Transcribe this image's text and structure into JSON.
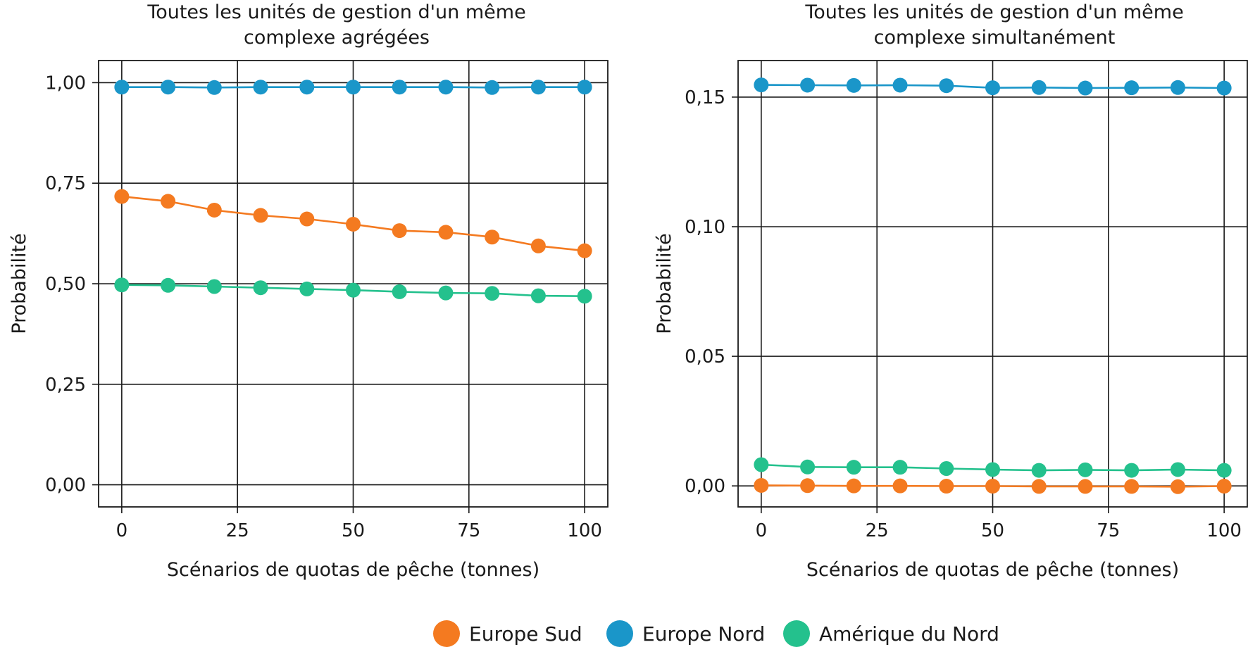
{
  "colors": {
    "europe_sud": "#f47a20",
    "europe_nord": "#1a96c9",
    "amerique_nord": "#24c18d"
  },
  "legend": [
    {
      "label": "Europe Sud",
      "color": "#f47a20"
    },
    {
      "label": "Europe Nord",
      "color": "#1a96c9"
    },
    {
      "label": "Amérique du Nord",
      "color": "#24c18d"
    }
  ],
  "chart_data": [
    {
      "type": "line",
      "title": [
        "Toutes les unités de gestion d'un même",
        "complexe agrégées"
      ],
      "xlabel": "Scénarios de quotas de pêche (tonnes)",
      "ylabel": "Probabilité",
      "x": [
        0,
        10,
        20,
        30,
        40,
        50,
        60,
        70,
        80,
        90,
        100
      ],
      "xlim": [
        -5,
        105
      ],
      "ylim": [
        -0.055,
        1.055
      ],
      "xticks": [
        0,
        25,
        50,
        75,
        100
      ],
      "xtick_labels": [
        "0",
        "25",
        "50",
        "75",
        "100"
      ],
      "yticks": [
        0,
        0.25,
        0.5,
        0.75,
        1.0
      ],
      "ytick_labels": [
        "0,00",
        "0,25",
        "0,50",
        "0,75",
        "1,00"
      ],
      "grid": true,
      "series": [
        {
          "name": "Europe Nord",
          "color": "#1a96c9",
          "values": [
            0.989,
            0.989,
            0.988,
            0.989,
            0.989,
            0.989,
            0.989,
            0.989,
            0.988,
            0.989,
            0.989
          ]
        },
        {
          "name": "Europe Sud",
          "color": "#f47a20",
          "values": [
            0.717,
            0.705,
            0.683,
            0.67,
            0.661,
            0.648,
            0.632,
            0.628,
            0.616,
            0.594,
            0.582
          ]
        },
        {
          "name": "Amérique du Nord",
          "color": "#24c18d",
          "values": [
            0.497,
            0.496,
            0.493,
            0.49,
            0.487,
            0.484,
            0.48,
            0.477,
            0.476,
            0.47,
            0.469
          ]
        }
      ]
    },
    {
      "type": "line",
      "title": [
        "Toutes les unités de gestion d'un même",
        "complexe simultanément"
      ],
      "xlabel": "Scénarios de quotas de pêche (tonnes)",
      "ylabel": "Probabilité",
      "x": [
        0,
        10,
        20,
        30,
        40,
        50,
        60,
        70,
        80,
        90,
        100
      ],
      "xlim": [
        -5,
        105
      ],
      "ylim": [
        -0.0081,
        0.1641
      ],
      "xticks": [
        0,
        25,
        50,
        75,
        100
      ],
      "xtick_labels": [
        "0",
        "25",
        "50",
        "75",
        "100"
      ],
      "yticks": [
        0,
        0.05,
        0.1,
        0.15
      ],
      "ytick_labels": [
        "0,00",
        "0,05",
        "0,10",
        "0,15"
      ],
      "grid": true,
      "series": [
        {
          "name": "Europe Nord",
          "color": "#1a96c9",
          "values": [
            0.1547,
            0.1546,
            0.1545,
            0.1546,
            0.1544,
            0.1536,
            0.1537,
            0.1535,
            0.1536,
            0.1537,
            0.1535
          ]
        },
        {
          "name": "Europe Sud",
          "color": "#f47a20",
          "values": [
            0.0002,
            0.0001,
            0.0,
            0.0,
            -0.0001,
            -0.0001,
            -0.0002,
            -0.0002,
            -0.0002,
            -0.0003,
            -0.0001
          ]
        },
        {
          "name": "Amérique du Nord",
          "color": "#24c18d",
          "values": [
            0.0082,
            0.0073,
            0.0072,
            0.0072,
            0.0067,
            0.0063,
            0.006,
            0.0062,
            0.006,
            0.0063,
            0.006
          ]
        }
      ]
    }
  ]
}
